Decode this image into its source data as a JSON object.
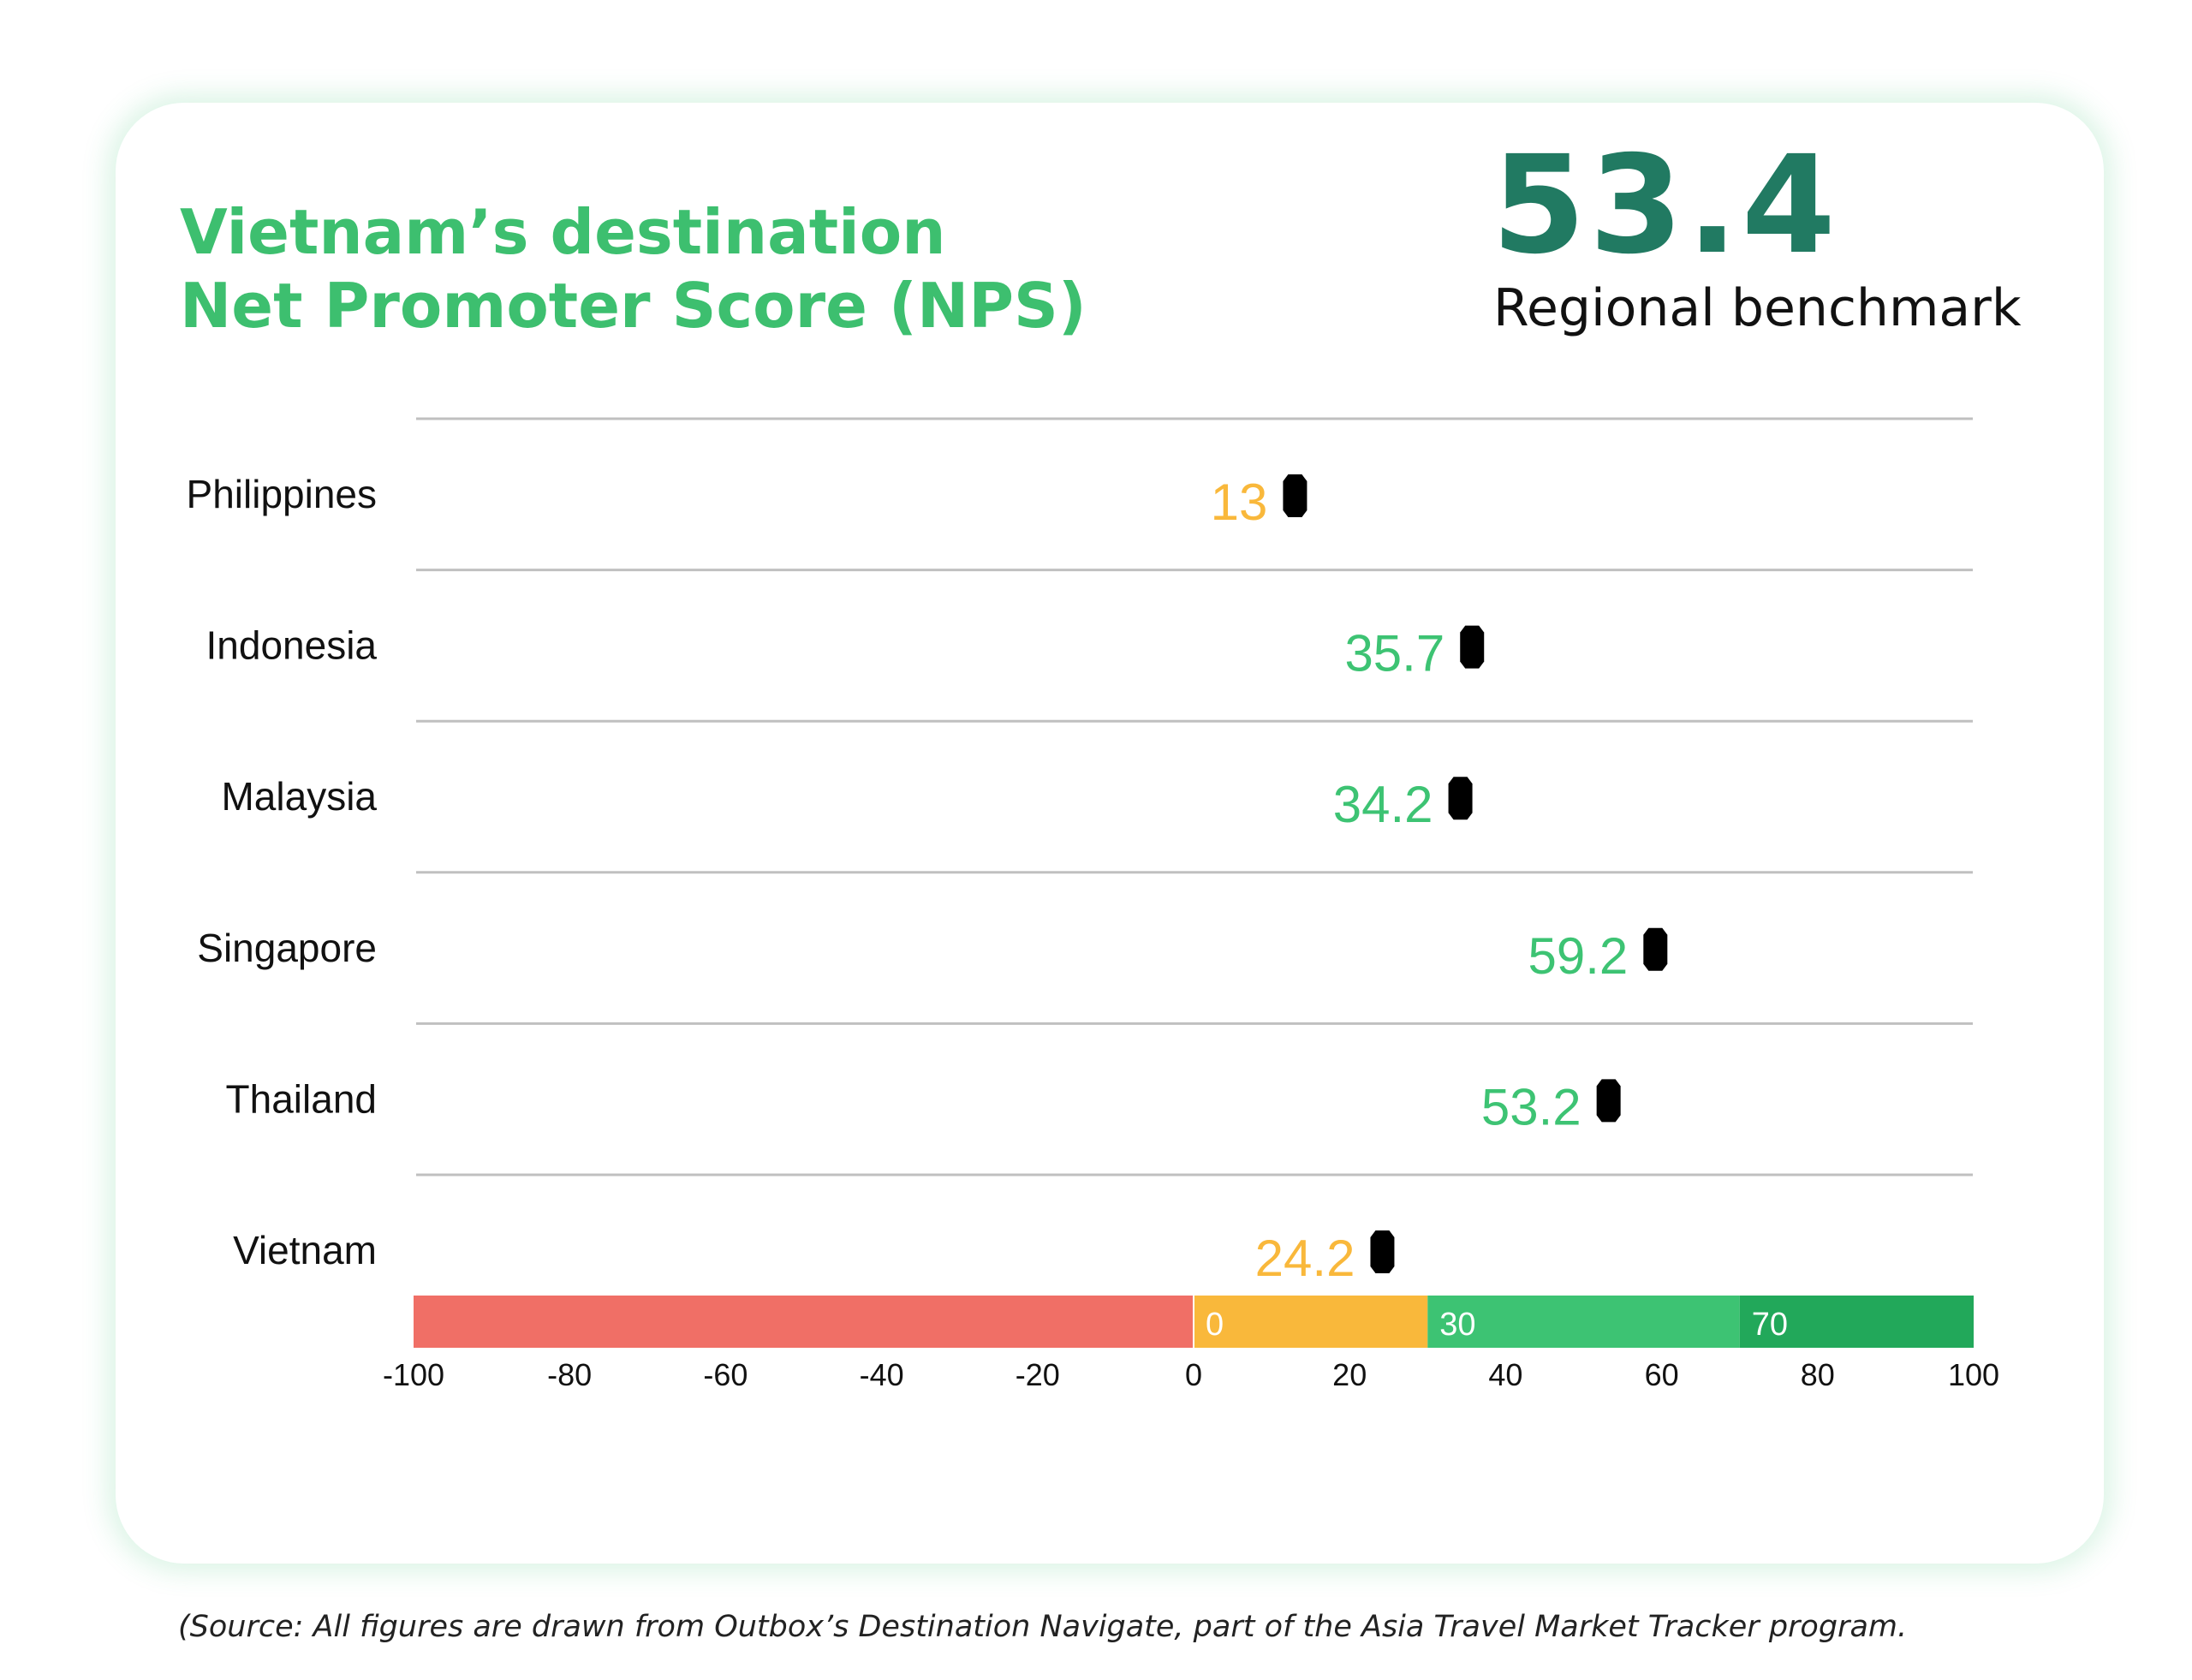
{
  "header": {
    "title_line1": "Vietnam’s destination",
    "title_line2": "Net Promoter Score (NPS)",
    "benchmark_value": "53.4",
    "benchmark_label": "Regional benchmark"
  },
  "chart_data": {
    "type": "dot",
    "categories": [
      "Philippines",
      "Indonesia",
      "Malaysia",
      "Singapore",
      "Thailand",
      "Vietnam"
    ],
    "values": [
      13,
      35.7,
      34.2,
      59.2,
      53.2,
      24.2
    ],
    "value_labels": [
      "13",
      "35.7",
      "34.2",
      "59.2",
      "53.2",
      "24.2"
    ],
    "xlim": [
      -100,
      100
    ],
    "x_ticks": [
      "-100",
      "-80",
      "-60",
      "-40",
      "-20",
      "0",
      "20",
      "40",
      "60",
      "80",
      "100"
    ],
    "bands": [
      {
        "from": -100,
        "to": 0,
        "label": "",
        "color": "#f06f66"
      },
      {
        "from": 0,
        "to": 30,
        "label": "0",
        "color": "#f9b83b"
      },
      {
        "from": 30,
        "to": 70,
        "label": "30",
        "color": "#3dc373"
      },
      {
        "from": 70,
        "to": 100,
        "label": "70",
        "color": "#22a85a"
      }
    ],
    "label_colors": {
      "below_30": "#f9b83b",
      "above_30": "#3dc373"
    },
    "marker_color": "#000000",
    "grid": true
  },
  "footer": {
    "source": "(Source: All figures are drawn from Outbox’s Destination Navigate, part of the Asia Travel Market Tracker program."
  }
}
